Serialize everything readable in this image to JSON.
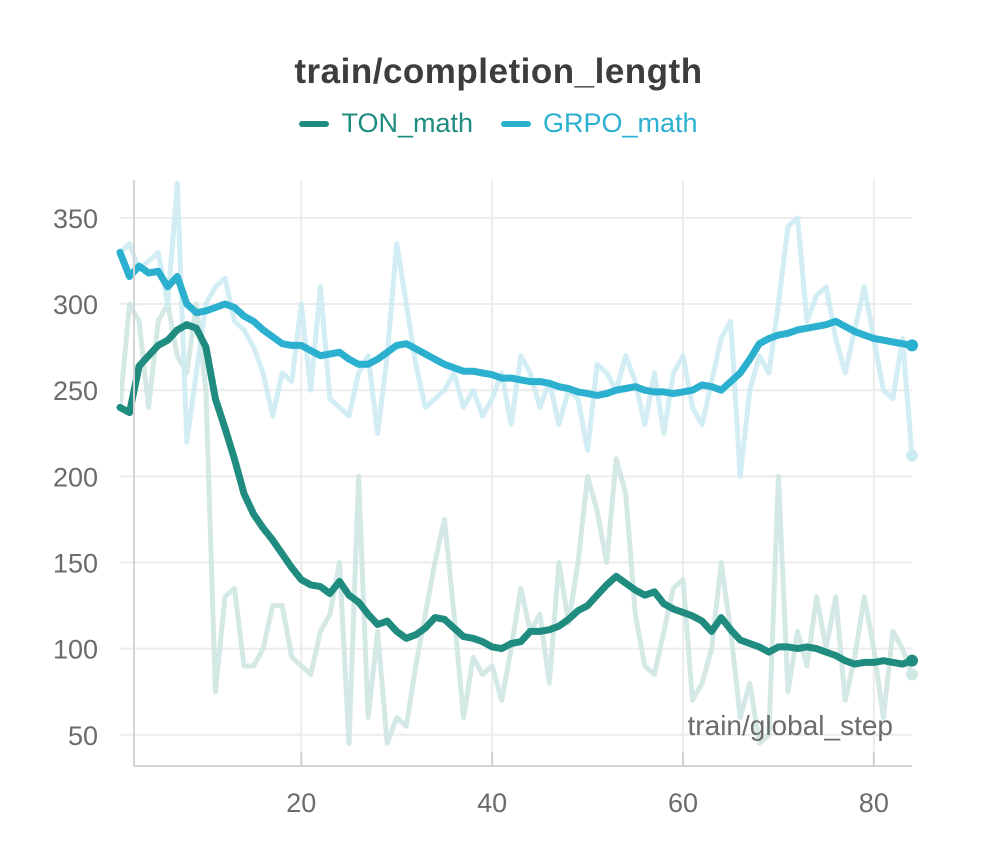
{
  "chart_data": {
    "type": "line",
    "title": "train/completion_length",
    "xlabel": "train/global_step",
    "ylabel": "",
    "xlim": [
      1,
      84
    ],
    "ylim": [
      40,
      372
    ],
    "x_ticks": [
      20,
      40,
      60,
      80
    ],
    "y_ticks": [
      50,
      100,
      150,
      200,
      250,
      300,
      350
    ],
    "grid": true,
    "legend_position": "top-center",
    "series": [
      {
        "name": "TON_math",
        "color": "#1f8c7f",
        "raw_color": "#cfe7e2",
        "x": [
          1,
          2,
          3,
          4,
          5,
          6,
          7,
          8,
          9,
          10,
          11,
          12,
          13,
          14,
          15,
          16,
          17,
          18,
          19,
          20,
          21,
          22,
          23,
          24,
          25,
          26,
          27,
          28,
          29,
          30,
          31,
          32,
          33,
          34,
          35,
          36,
          37,
          38,
          39,
          40,
          41,
          42,
          43,
          44,
          45,
          46,
          47,
          48,
          49,
          50,
          51,
          52,
          53,
          54,
          55,
          56,
          57,
          58,
          59,
          60,
          61,
          62,
          63,
          64,
          65,
          66,
          67,
          68,
          69,
          70,
          71,
          72,
          73,
          74,
          75,
          76,
          77,
          78,
          79,
          80,
          81,
          82,
          83,
          84
        ],
        "smoothed": [
          240,
          237,
          264,
          270,
          276,
          279,
          285,
          288,
          286,
          275,
          245,
          228,
          210,
          190,
          178,
          170,
          163,
          155,
          147,
          140,
          137,
          136,
          132,
          139,
          131,
          127,
          120,
          114,
          116,
          110,
          106,
          108,
          112,
          118,
          117,
          112,
          107,
          106,
          104,
          101,
          100,
          103,
          104,
          110,
          110,
          111,
          113,
          117,
          122,
          125,
          131,
          137,
          142,
          138,
          134,
          131,
          133,
          126,
          123,
          121,
          119,
          116,
          110,
          118,
          111,
          105,
          103,
          101,
          98,
          101,
          101,
          100,
          101,
          100,
          98,
          96,
          93,
          91,
          92,
          92,
          93,
          92,
          91,
          93
        ],
        "raw": [
          240,
          300,
          290,
          240,
          290,
          300,
          270,
          260,
          300,
          250,
          75,
          130,
          135,
          90,
          90,
          100,
          125,
          125,
          95,
          90,
          85,
          110,
          120,
          150,
          45,
          200,
          60,
          110,
          45,
          60,
          55,
          90,
          120,
          150,
          175,
          120,
          60,
          95,
          85,
          90,
          70,
          100,
          135,
          110,
          120,
          80,
          150,
          115,
          150,
          200,
          180,
          150,
          210,
          190,
          120,
          90,
          85,
          110,
          135,
          140,
          70,
          80,
          100,
          150,
          110,
          60,
          80,
          45,
          50,
          200,
          75,
          110,
          90,
          130,
          100,
          130,
          70,
          95,
          130,
          100,
          60,
          110,
          100,
          85
        ]
      },
      {
        "name": "GRPO_math",
        "color": "#2bb0cf",
        "raw_color": "#cdebf3",
        "x": [
          1,
          2,
          3,
          4,
          5,
          6,
          7,
          8,
          9,
          10,
          11,
          12,
          13,
          14,
          15,
          16,
          17,
          18,
          19,
          20,
          21,
          22,
          23,
          24,
          25,
          26,
          27,
          28,
          29,
          30,
          31,
          32,
          33,
          34,
          35,
          36,
          37,
          38,
          39,
          40,
          41,
          42,
          43,
          44,
          45,
          46,
          47,
          48,
          49,
          50,
          51,
          52,
          53,
          54,
          55,
          56,
          57,
          58,
          59,
          60,
          61,
          62,
          63,
          64,
          65,
          66,
          67,
          68,
          69,
          70,
          71,
          72,
          73,
          74,
          75,
          76,
          77,
          78,
          79,
          80,
          81,
          82,
          83,
          84
        ],
        "smoothed": [
          330,
          316,
          322,
          318,
          319,
          310,
          316,
          300,
          295,
          296,
          298,
          300,
          298,
          293,
          290,
          285,
          281,
          277,
          276,
          276,
          273,
          270,
          271,
          272,
          268,
          265,
          265,
          268,
          272,
          276,
          277,
          274,
          271,
          268,
          265,
          263,
          261,
          261,
          260,
          259,
          257,
          257,
          256,
          255,
          255,
          254,
          252,
          251,
          249,
          248,
          247,
          248,
          250,
          251,
          252,
          250,
          249,
          249,
          248,
          249,
          250,
          253,
          252,
          250,
          255,
          260,
          268,
          277,
          280,
          282,
          283,
          285,
          286,
          287,
          288,
          290,
          287,
          284,
          282,
          280,
          279,
          278,
          277,
          276
        ],
        "raw": [
          330,
          335,
          320,
          325,
          330,
          300,
          370,
          220,
          260,
          300,
          310,
          315,
          290,
          285,
          275,
          260,
          235,
          260,
          255,
          300,
          250,
          310,
          245,
          240,
          235,
          260,
          270,
          225,
          270,
          335,
          300,
          265,
          240,
          245,
          250,
          260,
          240,
          250,
          235,
          245,
          260,
          230,
          270,
          260,
          240,
          255,
          230,
          250,
          245,
          215,
          265,
          260,
          250,
          270,
          255,
          230,
          260,
          225,
          260,
          270,
          240,
          230,
          255,
          280,
          290,
          200,
          250,
          270,
          260,
          300,
          345,
          350,
          290,
          305,
          310,
          280,
          260,
          285,
          310,
          280,
          250,
          245,
          280,
          212
        ]
      }
    ]
  }
}
